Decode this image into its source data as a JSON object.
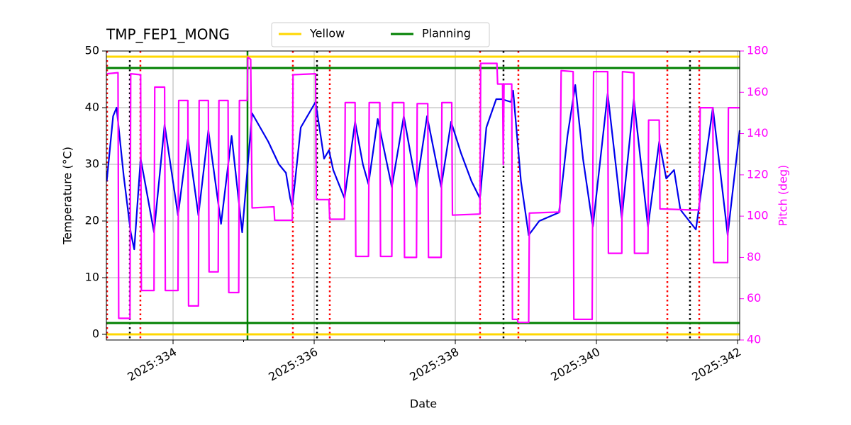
{
  "chart_data": {
    "type": "line",
    "title": "TMP_FEP1_MONG",
    "xlabel": "Date",
    "ylabel": "Temperature (°C)",
    "y2label": "Pitch (deg)",
    "xlim": [
      333.055,
      342.03
    ],
    "ylim": [
      -1,
      50
    ],
    "y2lim": [
      40,
      180
    ],
    "xticks": [
      {
        "value": 334,
        "label": "2025:334"
      },
      {
        "value": 336,
        "label": "2025:336"
      },
      {
        "value": 338,
        "label": "2025:338"
      },
      {
        "value": 340,
        "label": "2025:340"
      },
      {
        "value": 342,
        "label": "2025:342"
      }
    ],
    "xminorticks": [
      335,
      337,
      339,
      341
    ],
    "yticks": [
      0,
      10,
      20,
      30,
      40,
      50
    ],
    "y2ticks": [
      40,
      60,
      80,
      100,
      120,
      140,
      160,
      180
    ],
    "grid": true,
    "legend": "upper center",
    "hlines": [
      {
        "name": "Yellow",
        "color": "#ffd700",
        "values": [
          49,
          0
        ]
      },
      {
        "name": "Planning",
        "color": "#008000",
        "values": [
          47,
          2
        ]
      }
    ],
    "vlines": [
      {
        "color": "#ff0000",
        "style": "dotted",
        "x": [
          333.065,
          333.537,
          335.698,
          336.221,
          338.351,
          338.894,
          341.005,
          341.457
        ]
      },
      {
        "color": "#000000",
        "style": "dotted",
        "x": [
          333.387,
          336.04,
          338.683,
          341.326
        ]
      },
      {
        "color": "#008000",
        "style": "solid",
        "x": [
          335.055
        ]
      }
    ],
    "series": [
      {
        "color": "#0000ee",
        "x": [
          333.06,
          333.15,
          333.2,
          333.3,
          333.4,
          333.45,
          333.54,
          333.6,
          333.73,
          333.88,
          334.07,
          334.21,
          334.36,
          334.5,
          334.68,
          334.83,
          334.98,
          335.12,
          335.35,
          335.5,
          335.6,
          335.66,
          335.69,
          335.81,
          336.02,
          336.14,
          336.21,
          336.27,
          336.43,
          336.58,
          336.69,
          336.77,
          336.9,
          337.1,
          337.27,
          337.45,
          337.6,
          337.8,
          337.94,
          338.08,
          338.23,
          338.35,
          338.44,
          338.58,
          338.66,
          338.79,
          338.82,
          338.93,
          339.04,
          339.19,
          339.47,
          339.59,
          339.7,
          339.81,
          339.95,
          340.16,
          340.36,
          340.53,
          340.73,
          340.89,
          340.99,
          341.1,
          341.19,
          341.41,
          341.65,
          341.86,
          342.03
        ],
        "values": [
          27,
          38.5,
          40,
          28,
          18,
          15,
          31,
          27,
          18,
          37,
          21,
          34.5,
          21,
          36,
          19.5,
          35,
          18,
          39,
          34,
          30,
          28.5,
          24,
          22.5,
          36.5,
          41,
          31,
          32.5,
          29,
          24,
          37.5,
          30,
          26.5,
          38,
          26,
          38.5,
          26,
          38.5,
          26,
          37.5,
          32,
          27,
          24,
          36.5,
          41.5,
          41.5,
          41,
          43,
          27,
          17.5,
          20,
          21.5,
          35,
          44,
          31,
          19,
          42.5,
          20.5,
          41.5,
          19,
          34,
          27.5,
          29,
          22,
          18.5,
          40,
          17.5,
          36
        ]
      },
      {
        "color": "#ff00ff",
        "axis": "y2",
        "x": [
          333.065,
          333.22,
          333.23,
          333.39,
          333.4,
          333.54,
          333.55,
          333.73,
          333.74,
          333.88,
          333.89,
          334.07,
          334.08,
          334.21,
          334.22,
          334.36,
          334.37,
          334.5,
          334.51,
          334.64,
          334.65,
          334.78,
          334.79,
          334.93,
          334.94,
          335.05,
          335.06,
          335.1,
          335.12,
          335.43,
          335.44,
          335.69,
          335.7,
          336.02,
          336.03,
          336.21,
          336.22,
          336.43,
          336.44,
          336.58,
          336.59,
          336.77,
          336.78,
          336.93,
          336.94,
          337.1,
          337.11,
          337.27,
          337.28,
          337.45,
          337.46,
          337.61,
          337.62,
          337.8,
          337.81,
          337.95,
          337.96,
          338.35,
          338.36,
          338.59,
          338.6,
          338.67,
          338.68,
          338.69,
          338.8,
          338.81,
          338.88,
          338.89,
          339.04,
          339.05,
          339.48,
          339.5,
          339.67,
          339.68,
          339.94,
          339.95,
          339.96,
          340.16,
          340.17,
          340.36,
          340.37,
          340.53,
          340.54,
          340.73,
          340.74,
          340.89,
          340.9,
          341.33,
          341.46,
          341.47,
          341.65,
          341.66,
          341.86,
          341.87,
          342.03
        ],
        "values": [
          169,
          169.5,
          50.5,
          50.5,
          169,
          168.5,
          64,
          64,
          162.5,
          162.5,
          64,
          64,
          156,
          156,
          56.5,
          56.5,
          156,
          156,
          73,
          73,
          156,
          156,
          63,
          63,
          156,
          156,
          177,
          176,
          104,
          104.5,
          98,
          98,
          168.5,
          169,
          108,
          108,
          98.5,
          98.5,
          155,
          155,
          80.5,
          80.5,
          155,
          155,
          80.5,
          80.5,
          155,
          155,
          80,
          80,
          154.5,
          154.5,
          80,
          80,
          155,
          155,
          100.5,
          101,
          174,
          174,
          164,
          164,
          125,
          164,
          164,
          50,
          50,
          48.5,
          48.5,
          101.5,
          102,
          170.5,
          170,
          50,
          50,
          120,
          170,
          170,
          82,
          82,
          170,
          169.5,
          82,
          82,
          146.5,
          146.5,
          103.5,
          103,
          103,
          152.5,
          152.5,
          77.5,
          77.5,
          152.5,
          152.5
        ]
      }
    ]
  }
}
